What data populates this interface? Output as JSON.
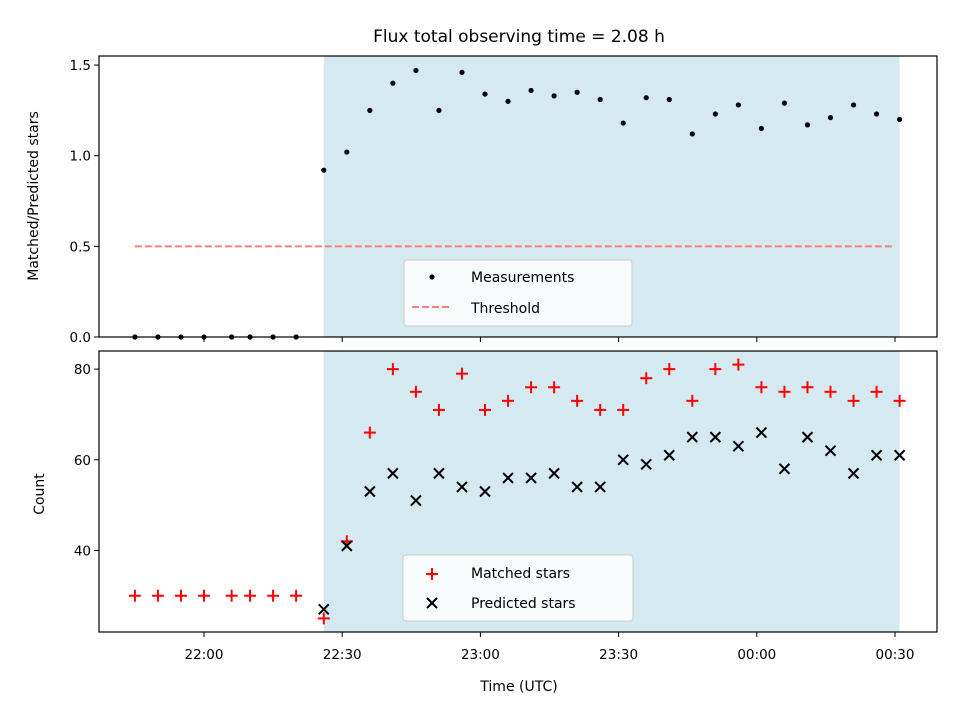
{
  "chart_data": [
    {
      "type": "scatter",
      "title": "Flux total observing time = 2.08 h",
      "ylabel": "Matched/Predicted stars",
      "xlabel": "",
      "ylim": [
        0,
        1.55
      ],
      "yticks": [
        "0.0",
        "0.5",
        "1.0",
        "1.5"
      ],
      "legend_placement": "lower-center",
      "highlight_span": {
        "start": "22:26",
        "end": "00:31",
        "color": "#d4eaf0"
      },
      "threshold": {
        "name": "Threshold",
        "value": 0.5,
        "x_start": "21:45",
        "x_end": "00:30",
        "color": "#ff7f7f"
      },
      "series": [
        {
          "name": "Measurements",
          "color": "#000000",
          "x": [
            "21:45",
            "21:50",
            "21:55",
            "22:00",
            "22:06",
            "22:10",
            "22:15",
            "22:20",
            "22:26",
            "22:31",
            "22:36",
            "22:41",
            "22:46",
            "22:51",
            "22:56",
            "23:01",
            "23:06",
            "23:11",
            "23:16",
            "23:21",
            "23:26",
            "23:31",
            "23:36",
            "23:41",
            "23:46",
            "23:51",
            "23:56",
            "00:01",
            "00:06",
            "00:11",
            "00:16",
            "00:21",
            "00:26",
            "00:31"
          ],
          "values": [
            0,
            0,
            0,
            0,
            0,
            0,
            0,
            0,
            0.92,
            1.02,
            1.25,
            1.4,
            1.47,
            1.25,
            1.46,
            1.34,
            1.3,
            1.36,
            1.33,
            1.35,
            1.31,
            1.18,
            1.32,
            1.31,
            1.12,
            1.23,
            1.28,
            1.15,
            1.29,
            1.17,
            1.21,
            1.28,
            1.23,
            1.2
          ]
        }
      ]
    },
    {
      "type": "scatter",
      "xlabel": "Time (UTC)",
      "ylabel": "Count",
      "ylim": [
        22,
        84
      ],
      "yticks": [
        "40",
        "60",
        "80"
      ],
      "xticks": [
        "22:00",
        "22:30",
        "23:00",
        "23:30",
        "00:00",
        "00:30"
      ],
      "legend_placement": "lower-center",
      "highlight_span": {
        "start": "22:26",
        "end": "00:31",
        "color": "#d4eaf0"
      },
      "series": [
        {
          "name": "Matched stars",
          "marker": "+",
          "color": "#ff0000",
          "x": [
            "21:45",
            "21:50",
            "21:55",
            "22:00",
            "22:06",
            "22:10",
            "22:15",
            "22:20",
            "22:26",
            "22:31",
            "22:36",
            "22:41",
            "22:46",
            "22:51",
            "22:56",
            "23:01",
            "23:06",
            "23:11",
            "23:16",
            "23:21",
            "23:26",
            "23:31",
            "23:36",
            "23:41",
            "23:46",
            "23:51",
            "23:56",
            "00:01",
            "00:06",
            "00:11",
            "00:16",
            "00:21",
            "00:26",
            "00:31"
          ],
          "values": [
            30,
            30,
            30,
            30,
            30,
            30,
            30,
            30,
            25,
            42,
            66,
            80,
            75,
            71,
            79,
            71,
            73,
            76,
            76,
            73,
            71,
            71,
            78,
            80,
            73,
            80,
            81,
            76,
            75,
            76,
            75,
            73,
            75,
            73
          ]
        },
        {
          "name": "Predicted stars",
          "marker": "x",
          "color": "#000000",
          "x": [
            "22:26",
            "22:31",
            "22:36",
            "22:41",
            "22:46",
            "22:51",
            "22:56",
            "23:01",
            "23:06",
            "23:11",
            "23:16",
            "23:21",
            "23:26",
            "23:31",
            "23:36",
            "23:41",
            "23:46",
            "23:51",
            "23:56",
            "00:01",
            "00:06",
            "00:11",
            "00:16",
            "00:21",
            "00:26",
            "00:31"
          ],
          "values": [
            27,
            41,
            53,
            57,
            51,
            57,
            54,
            53,
            56,
            56,
            57,
            54,
            54,
            60,
            59,
            61,
            65,
            65,
            63,
            66,
            58,
            65,
            62,
            57,
            61,
            61
          ]
        }
      ]
    }
  ]
}
